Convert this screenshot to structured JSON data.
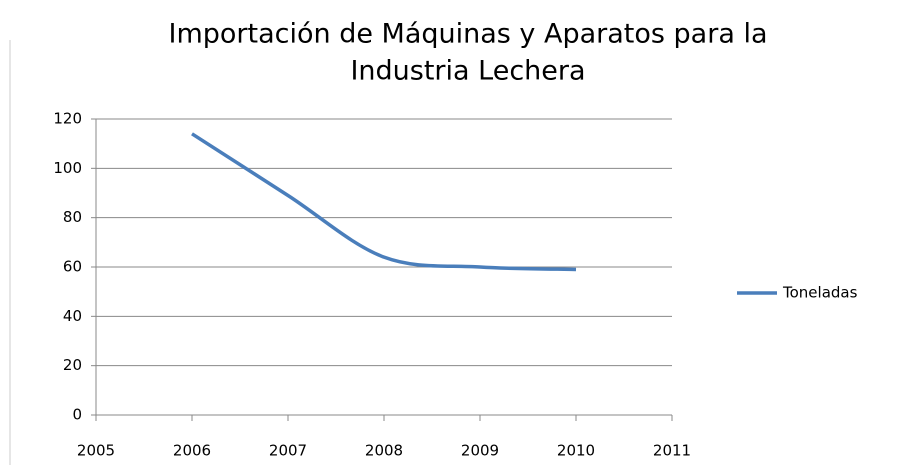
{
  "chart_data": {
    "type": "line",
    "title": [
      "Importación de Máquinas y Aparatos para la",
      "Industria Lechera"
    ],
    "x": [
      2006,
      2007,
      2008,
      2009,
      2010
    ],
    "series": [
      {
        "name": "Toneladas",
        "color": "#4a7ebb",
        "values": [
          114,
          89,
          64,
          60,
          59
        ]
      }
    ],
    "xlim": [
      2005,
      2011
    ],
    "xticks": [
      2005,
      2006,
      2007,
      2008,
      2009,
      2010,
      2011
    ],
    "ylim": [
      0,
      120
    ],
    "yticks": [
      0,
      20,
      40,
      60,
      80,
      100,
      120
    ],
    "grid": true,
    "legend": "right",
    "smooth": true
  }
}
